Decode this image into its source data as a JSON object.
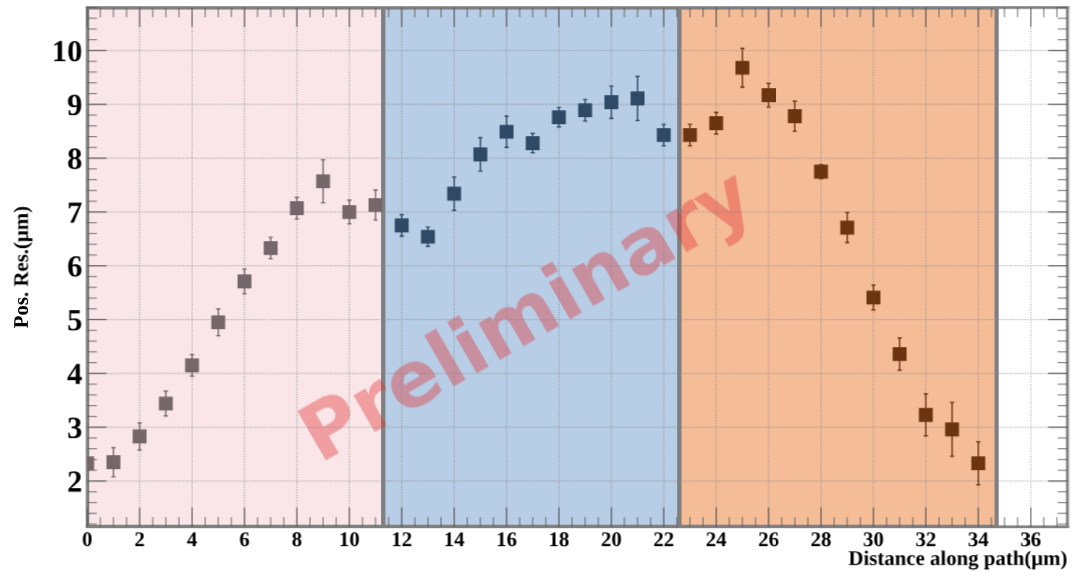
{
  "chart_data": {
    "type": "scatter",
    "xlabel": "Distance along path(μm)",
    "ylabel": "Pos. Res.(μm)",
    "xlim": [
      0,
      37.4
    ],
    "ylim": [
      1.15,
      10.8
    ],
    "xticks": [
      0,
      2,
      4,
      6,
      8,
      10,
      12,
      14,
      16,
      18,
      20,
      22,
      24,
      26,
      28,
      30,
      32,
      34,
      36
    ],
    "yticks": [
      2,
      3,
      4,
      5,
      6,
      7,
      8,
      9,
      10
    ],
    "grid": true,
    "marker": "square",
    "bands": [
      {
        "axis": "x",
        "from": 0,
        "to": 11.3,
        "color": "#fae6e8"
      },
      {
        "axis": "x",
        "from": 11.3,
        "to": 22.6,
        "color": "#b8cde6"
      },
      {
        "axis": "x",
        "from": 22.6,
        "to": 34.7,
        "color": "#f5bc98"
      }
    ],
    "annotations": [
      "Preliminary"
    ],
    "series": [
      {
        "color": "#76676a",
        "x": [
          0,
          1,
          2,
          3,
          4,
          5,
          6,
          7,
          8,
          9,
          10,
          11
        ],
        "values": [
          2.33,
          2.35,
          2.83,
          3.44,
          4.15,
          4.95,
          5.71,
          6.33,
          7.07,
          7.57,
          7.0,
          7.13
        ],
        "errors": [
          null,
          0.27,
          0.25,
          0.23,
          0.2,
          0.25,
          0.23,
          0.2,
          0.2,
          0.4,
          0.22,
          0.28
        ]
      },
      {
        "color": "#2f4a66",
        "x": [
          12,
          13,
          14,
          15,
          16,
          17,
          18,
          19,
          20,
          21,
          22
        ],
        "values": [
          6.75,
          6.54,
          7.34,
          8.07,
          8.49,
          8.28,
          8.76,
          8.89,
          9.04,
          9.11,
          8.43
        ],
        "errors": [
          0.2,
          0.18,
          0.31,
          0.31,
          0.29,
          0.18,
          0.18,
          0.2,
          0.3,
          0.41,
          0.2
        ]
      },
      {
        "color": "#6b3512",
        "x": [
          23,
          24,
          25,
          26,
          27,
          28,
          29,
          30,
          31,
          32,
          33,
          34
        ],
        "values": [
          8.43,
          8.65,
          9.68,
          9.17,
          8.78,
          7.75,
          6.71,
          5.41,
          4.36,
          3.23,
          2.96,
          2.33
        ],
        "errors": [
          0.2,
          0.2,
          0.36,
          0.22,
          0.28,
          0.13,
          0.28,
          0.23,
          0.3,
          0.39,
          0.5,
          0.4
        ]
      }
    ]
  }
}
